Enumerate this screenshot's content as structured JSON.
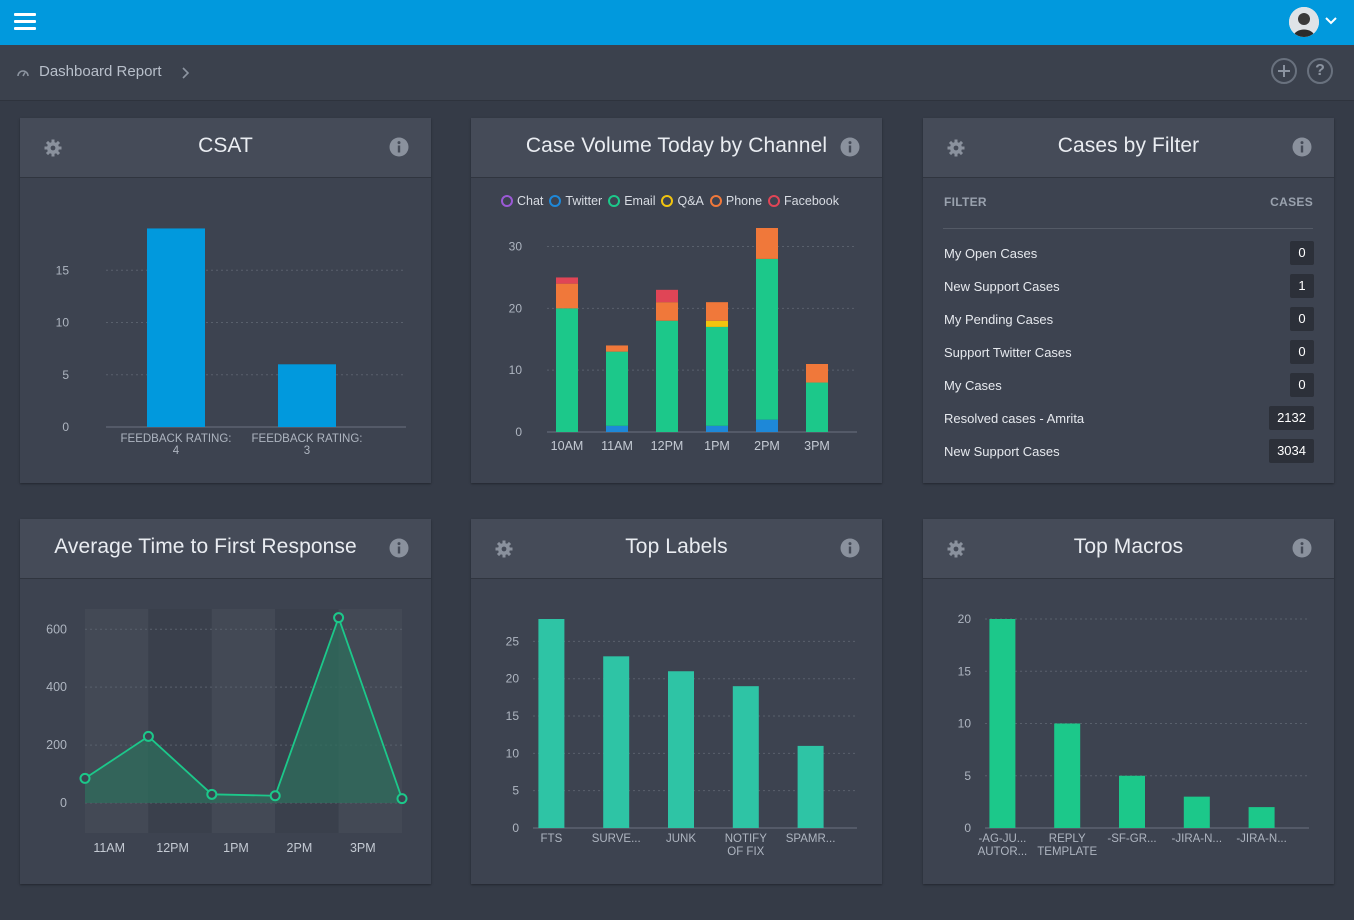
{
  "header": {
    "menu_icon": "hamburger-icon",
    "avatar_icon": "user-avatar",
    "avatar_menu_icon": "chevron-down-icon",
    "accent_color": "#0199dd"
  },
  "breadcrumb": {
    "icon": "dashboard-gauge-icon",
    "label": "Dashboard Report",
    "add_icon": "plus-circle-icon",
    "help_icon": "help-circle-icon"
  },
  "panels": {
    "csat": {
      "title": "CSAT"
    },
    "case_volume": {
      "title": "Case Volume Today by Channel"
    },
    "cases_by_filter": {
      "title": "Cases by Filter"
    },
    "avg_response": {
      "title": "Average Time to First Response"
    },
    "top_labels": {
      "title": "Top Labels"
    },
    "top_macros": {
      "title": "Top Macros"
    }
  },
  "cases_by_filter": {
    "col_filter": "FILTER",
    "col_cases": "CASES",
    "rows": [
      {
        "name": "My Open Cases",
        "count": "0"
      },
      {
        "name": "New Support Cases",
        "count": "1"
      },
      {
        "name": "My Pending Cases",
        "count": "0"
      },
      {
        "name": "Support Twitter Cases",
        "count": "0"
      },
      {
        "name": "My Cases",
        "count": "0"
      },
      {
        "name": "Resolved cases - Amrita",
        "count": "2132"
      },
      {
        "name": "New Support Cases",
        "count": "3034"
      }
    ]
  },
  "legend": [
    {
      "label": "Chat",
      "color": "#9b59d6"
    },
    {
      "label": "Twitter",
      "color": "#1e88d8"
    },
    {
      "label": "Email",
      "color": "#1cc88a"
    },
    {
      "label": "Q&A",
      "color": "#f1c40f"
    },
    {
      "label": "Phone",
      "color": "#f0783a"
    },
    {
      "label": "Facebook",
      "color": "#e04556"
    }
  ],
  "chart_data": [
    {
      "id": "csat",
      "type": "bar",
      "title": "CSAT",
      "categories": [
        [
          "FEEDBACK RATING:",
          "4"
        ],
        [
          "FEEDBACK RATING:",
          "3"
        ]
      ],
      "values": [
        19,
        6
      ],
      "yticks": [
        0,
        5,
        10,
        15
      ],
      "ylim": [
        0,
        20
      ],
      "color": "#0199dd"
    },
    {
      "id": "case_volume",
      "type": "bar",
      "stacked": true,
      "title": "Case Volume Today by Channel",
      "categories": [
        "10AM",
        "11AM",
        "12PM",
        "1PM",
        "2PM",
        "3PM"
      ],
      "series": [
        {
          "name": "Chat",
          "values": [
            0,
            0,
            0,
            0,
            0,
            0
          ]
        },
        {
          "name": "Twitter",
          "values": [
            0,
            1,
            0,
            1,
            2,
            0
          ]
        },
        {
          "name": "Email",
          "values": [
            20,
            12,
            18,
            16,
            26,
            8
          ]
        },
        {
          "name": "Q&A",
          "values": [
            0,
            0,
            0,
            1,
            0,
            0
          ]
        },
        {
          "name": "Phone",
          "values": [
            4,
            1,
            3,
            3,
            5,
            3
          ]
        },
        {
          "name": "Facebook",
          "values": [
            1,
            0,
            2,
            0,
            0,
            0
          ]
        }
      ],
      "yticks": [
        0,
        10,
        20,
        30
      ],
      "ylim": [
        0,
        33
      ]
    },
    {
      "id": "avg_response",
      "type": "area",
      "title": "Average Time to First Response",
      "x": [
        0,
        1,
        2,
        3,
        4,
        5
      ],
      "values": [
        85,
        230,
        30,
        25,
        640,
        15
      ],
      "xtick_labels": [
        {
          "x": 0.35,
          "label": "11AM"
        },
        {
          "x": 1.35,
          "label": "12PM"
        },
        {
          "x": 2.35,
          "label": "1PM"
        },
        {
          "x": 3.35,
          "label": "2PM"
        },
        {
          "x": 4.35,
          "label": "3PM"
        }
      ],
      "yticks": [
        0,
        200,
        400,
        600
      ],
      "ylim": [
        0,
        670
      ],
      "color": "#1cc88a"
    },
    {
      "id": "top_labels",
      "type": "bar",
      "title": "Top Labels",
      "categories": [
        [
          "FTS"
        ],
        [
          "SURVE..."
        ],
        [
          "JUNK"
        ],
        [
          "NOTIFY",
          "OF FIX"
        ],
        [
          "SPAMR..."
        ]
      ],
      "values": [
        28,
        23,
        21,
        19,
        11
      ],
      "yticks": [
        0,
        5,
        10,
        15,
        20,
        25
      ],
      "ylim": [
        0,
        28
      ],
      "color": "#2ec4a5"
    },
    {
      "id": "top_macros",
      "type": "bar",
      "title": "Top Macros",
      "categories": [
        [
          "-AG-JU...",
          "AUTOR..."
        ],
        [
          "REPLY",
          "TEMPLATE"
        ],
        [
          "-SF-GR..."
        ],
        [
          "-JIRA-N..."
        ],
        [
          "-JIRA-N..."
        ]
      ],
      "values": [
        20,
        10,
        5,
        3,
        2
      ],
      "yticks": [
        0,
        5,
        10,
        15,
        20
      ],
      "ylim": [
        0,
        20
      ],
      "color": "#1cc88a"
    }
  ]
}
